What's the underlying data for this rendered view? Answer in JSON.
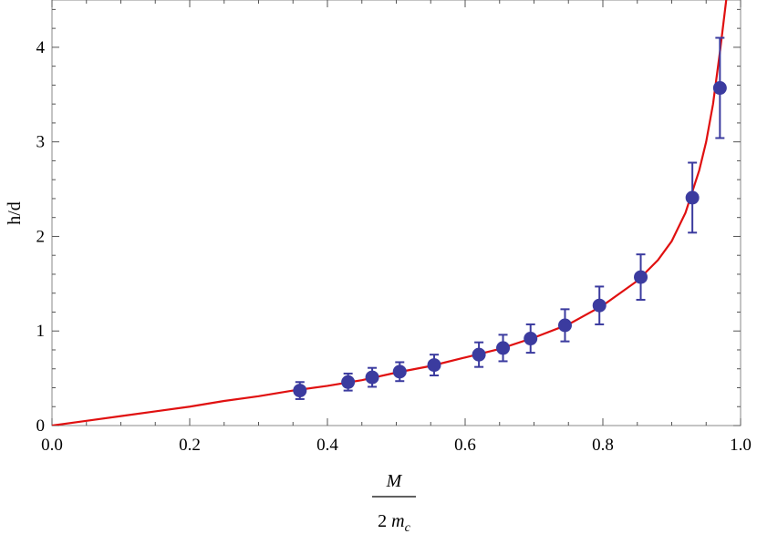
{
  "chart_data": {
    "type": "scatter",
    "title": "",
    "xlabel": {
      "numerator": "M",
      "denominator_prefix": "2 ",
      "denominator_var": "m",
      "denominator_sub": "c"
    },
    "ylabel": "h/d",
    "xlim": [
      0.0,
      1.0
    ],
    "ylim": [
      0,
      4.5
    ],
    "xticks": [
      "0.0",
      "0.2",
      "0.4",
      "0.6",
      "0.8",
      "1.0"
    ],
    "xtick_values": [
      0.0,
      0.2,
      0.4,
      0.6,
      0.8,
      1.0
    ],
    "yticks": [
      "0",
      "1",
      "2",
      "3",
      "4"
    ],
    "ytick_values": [
      0,
      1,
      2,
      3,
      4
    ],
    "grid": false,
    "series": [
      {
        "kind": "points-with-error-bars",
        "color": "#3b3b9f",
        "points": [
          {
            "x": 0.36,
            "y": 0.37,
            "err": 0.09
          },
          {
            "x": 0.43,
            "y": 0.46,
            "err": 0.09
          },
          {
            "x": 0.465,
            "y": 0.51,
            "err": 0.1
          },
          {
            "x": 0.505,
            "y": 0.57,
            "err": 0.1
          },
          {
            "x": 0.555,
            "y": 0.64,
            "err": 0.11
          },
          {
            "x": 0.62,
            "y": 0.75,
            "err": 0.13
          },
          {
            "x": 0.655,
            "y": 0.82,
            "err": 0.14
          },
          {
            "x": 0.695,
            "y": 0.92,
            "err": 0.15
          },
          {
            "x": 0.745,
            "y": 1.06,
            "err": 0.17
          },
          {
            "x": 0.795,
            "y": 1.27,
            "err": 0.2
          },
          {
            "x": 0.855,
            "y": 1.57,
            "err": 0.24
          },
          {
            "x": 0.93,
            "y": 2.41,
            "err": 0.37
          },
          {
            "x": 0.97,
            "y": 3.57,
            "err": 0.53
          }
        ]
      },
      {
        "kind": "curve",
        "color": "#e01010",
        "x": [
          0.0,
          0.05,
          0.1,
          0.15,
          0.2,
          0.25,
          0.3,
          0.35,
          0.4,
          0.45,
          0.5,
          0.55,
          0.6,
          0.65,
          0.7,
          0.75,
          0.8,
          0.85,
          0.88,
          0.9,
          0.92,
          0.94,
          0.95,
          0.96,
          0.97,
          0.975,
          0.98
        ],
        "y": [
          0.0,
          0.05,
          0.1,
          0.15,
          0.2,
          0.26,
          0.31,
          0.37,
          0.42,
          0.48,
          0.56,
          0.63,
          0.72,
          0.81,
          0.93,
          1.07,
          1.27,
          1.53,
          1.75,
          1.95,
          2.25,
          2.7,
          3.0,
          3.4,
          3.95,
          4.25,
          4.55
        ]
      }
    ]
  }
}
